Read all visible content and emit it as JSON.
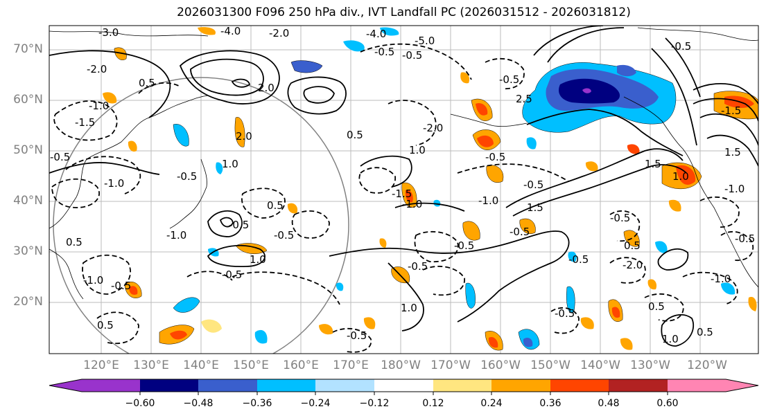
{
  "title": "2026031300 F096 250 hPa div., IVT Landfall PC (2026031512 - 2026031812)",
  "lat_labels": [
    "70°N",
    "60°N",
    "50°N",
    "40°N",
    "30°N",
    "20°N"
  ],
  "lon_labels": [
    "120°E",
    "130°E",
    "140°E",
    "150°E",
    "160°E",
    "170°E",
    "180°W",
    "170°W",
    "160°W",
    "150°W",
    "140°W",
    "130°W",
    "120°W"
  ],
  "colorbar": {
    "ticks": [
      "−0.60",
      "−0.48",
      "−0.36",
      "−0.24",
      "−0.12",
      "0.12",
      "0.24",
      "0.36",
      "0.48",
      "0.60"
    ],
    "colors": [
      "#9933cc",
      "#000080",
      "#3a5fcd",
      "#00bfff",
      "#b2e2ff",
      "#ffffff",
      "#ffe680",
      "#ffa500",
      "#ff4500",
      "#b22222",
      "#ff85b3"
    ]
  },
  "contour_labels": [
    "-3.0",
    "-4.0",
    "-2.0",
    "-4.0",
    "-5.0",
    "-2.0",
    "0.5",
    "2.0",
    "-0.5",
    "2.5",
    "-1.5",
    "-0.5",
    "-1.0",
    "-1.5",
    "-0.5",
    "0.5",
    "1.0",
    "-0.5",
    "-1.0",
    "-1.5",
    "-2.0",
    "1.0",
    "-0.5",
    "1.5",
    "-0.5",
    "-1.0",
    "0.5",
    "-0.5",
    "-0.5",
    "-1.0",
    "0.5",
    "-0.5",
    "1.0",
    "-1.0",
    "-0.5",
    "-0.5",
    "-0.5",
    "1.0",
    "-0.5",
    "0.5",
    "-0.5",
    "1.0",
    "0.5",
    "-2.0",
    "1.5",
    "-1.0",
    "-0.5",
    "-0.5",
    "-1.0",
    "1.5",
    "0.5",
    "-0.5",
    "1.0",
    "0.5",
    "-0.5",
    "-0.5",
    "-0.5",
    "2.0",
    "-1.0"
  ]
}
